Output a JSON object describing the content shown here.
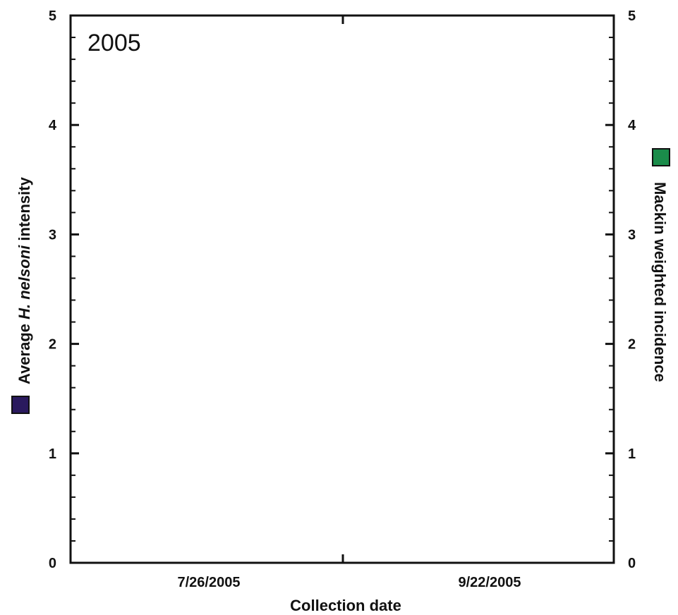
{
  "chart_data": {
    "type": "scatter",
    "title": "2005",
    "xlabel": "Collection date",
    "x_ticks": [
      "7/26/2005",
      "9/22/2005"
    ],
    "ylim": [
      0,
      5
    ],
    "y_ticks": [
      0,
      1,
      2,
      3,
      4,
      5
    ],
    "y2lim": [
      0,
      5
    ],
    "y2_ticks": [
      0,
      1,
      2,
      3,
      4,
      5
    ],
    "ylabel_parts": {
      "prefix": "Average ",
      "italic": "H. nelsoni",
      "suffix": " intensity"
    },
    "y2label": "Mackin weighted incidence",
    "series": [
      {
        "color": "#2a1a5e",
        "values": []
      },
      {
        "color": "#1a8c4a",
        "values": []
      }
    ],
    "grid": false
  }
}
